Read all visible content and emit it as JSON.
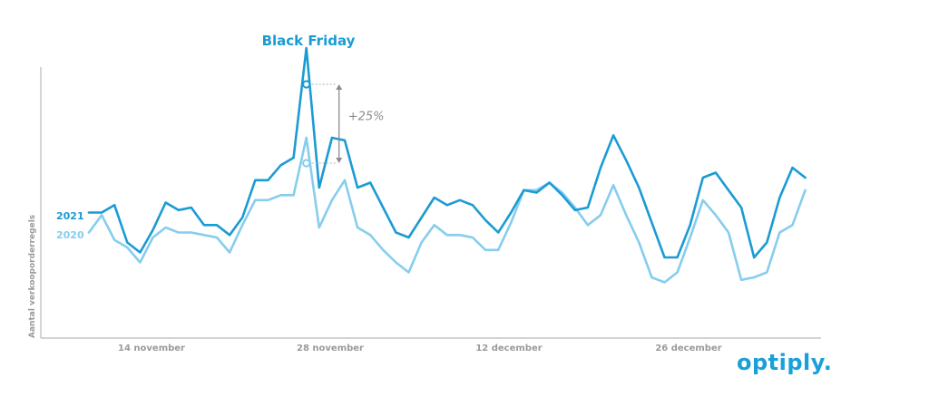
{
  "chart_data": {
    "type": "line",
    "ylabel": "Aantal verkooporderregels",
    "x_ticks": [
      "14 november",
      "28 november",
      "12 december",
      "26 december"
    ],
    "x": [
      0,
      1,
      2,
      3,
      4,
      5,
      6,
      7,
      8,
      9,
      10,
      11,
      12,
      13,
      14,
      15,
      16,
      17,
      18,
      19,
      20,
      21,
      22,
      23,
      24,
      25,
      26,
      27,
      28,
      29,
      30,
      31,
      32,
      33,
      34,
      35,
      36,
      37,
      38,
      39,
      40,
      41,
      42,
      43,
      44,
      45,
      46,
      47,
      48,
      49,
      50,
      51,
      52,
      53,
      54,
      55,
      56
    ],
    "series": [
      {
        "name": "2021",
        "color": "#1b9bd4",
        "values": [
          42,
          42,
          45,
          30,
          26,
          35,
          46,
          43,
          44,
          37,
          37,
          33,
          40,
          55,
          55,
          61,
          64,
          108,
          52,
          72,
          71,
          52,
          54,
          44,
          34,
          32,
          40,
          48,
          45,
          47,
          45,
          39,
          34,
          42,
          51,
          50,
          54,
          49,
          43,
          44,
          60,
          73,
          63,
          52,
          38,
          24,
          24,
          37,
          56,
          58,
          51,
          44,
          24,
          30,
          48,
          60,
          56
        ]
      },
      {
        "name": "2020",
        "color": "#86cdee",
        "values": [
          34,
          41,
          31,
          28,
          22,
          32,
          36,
          34,
          34,
          33,
          32,
          26,
          37,
          47,
          47,
          49,
          49,
          72,
          36,
          47,
          55,
          36,
          33,
          27,
          22,
          18,
          30,
          37,
          33,
          33,
          32,
          27,
          27,
          38,
          51,
          51,
          54,
          50,
          44,
          37,
          41,
          53,
          41,
          30,
          16,
          14,
          18,
          32,
          47,
          41,
          34,
          15,
          16,
          18,
          34,
          37,
          51
        ]
      }
    ],
    "annotations": [
      {
        "label": "Black Friday",
        "x": 17
      },
      {
        "label": "+25%",
        "x": 17
      }
    ]
  },
  "legend": {
    "s2021": "2021",
    "s2020": "2020"
  },
  "logo": {
    "text": "optiply."
  }
}
